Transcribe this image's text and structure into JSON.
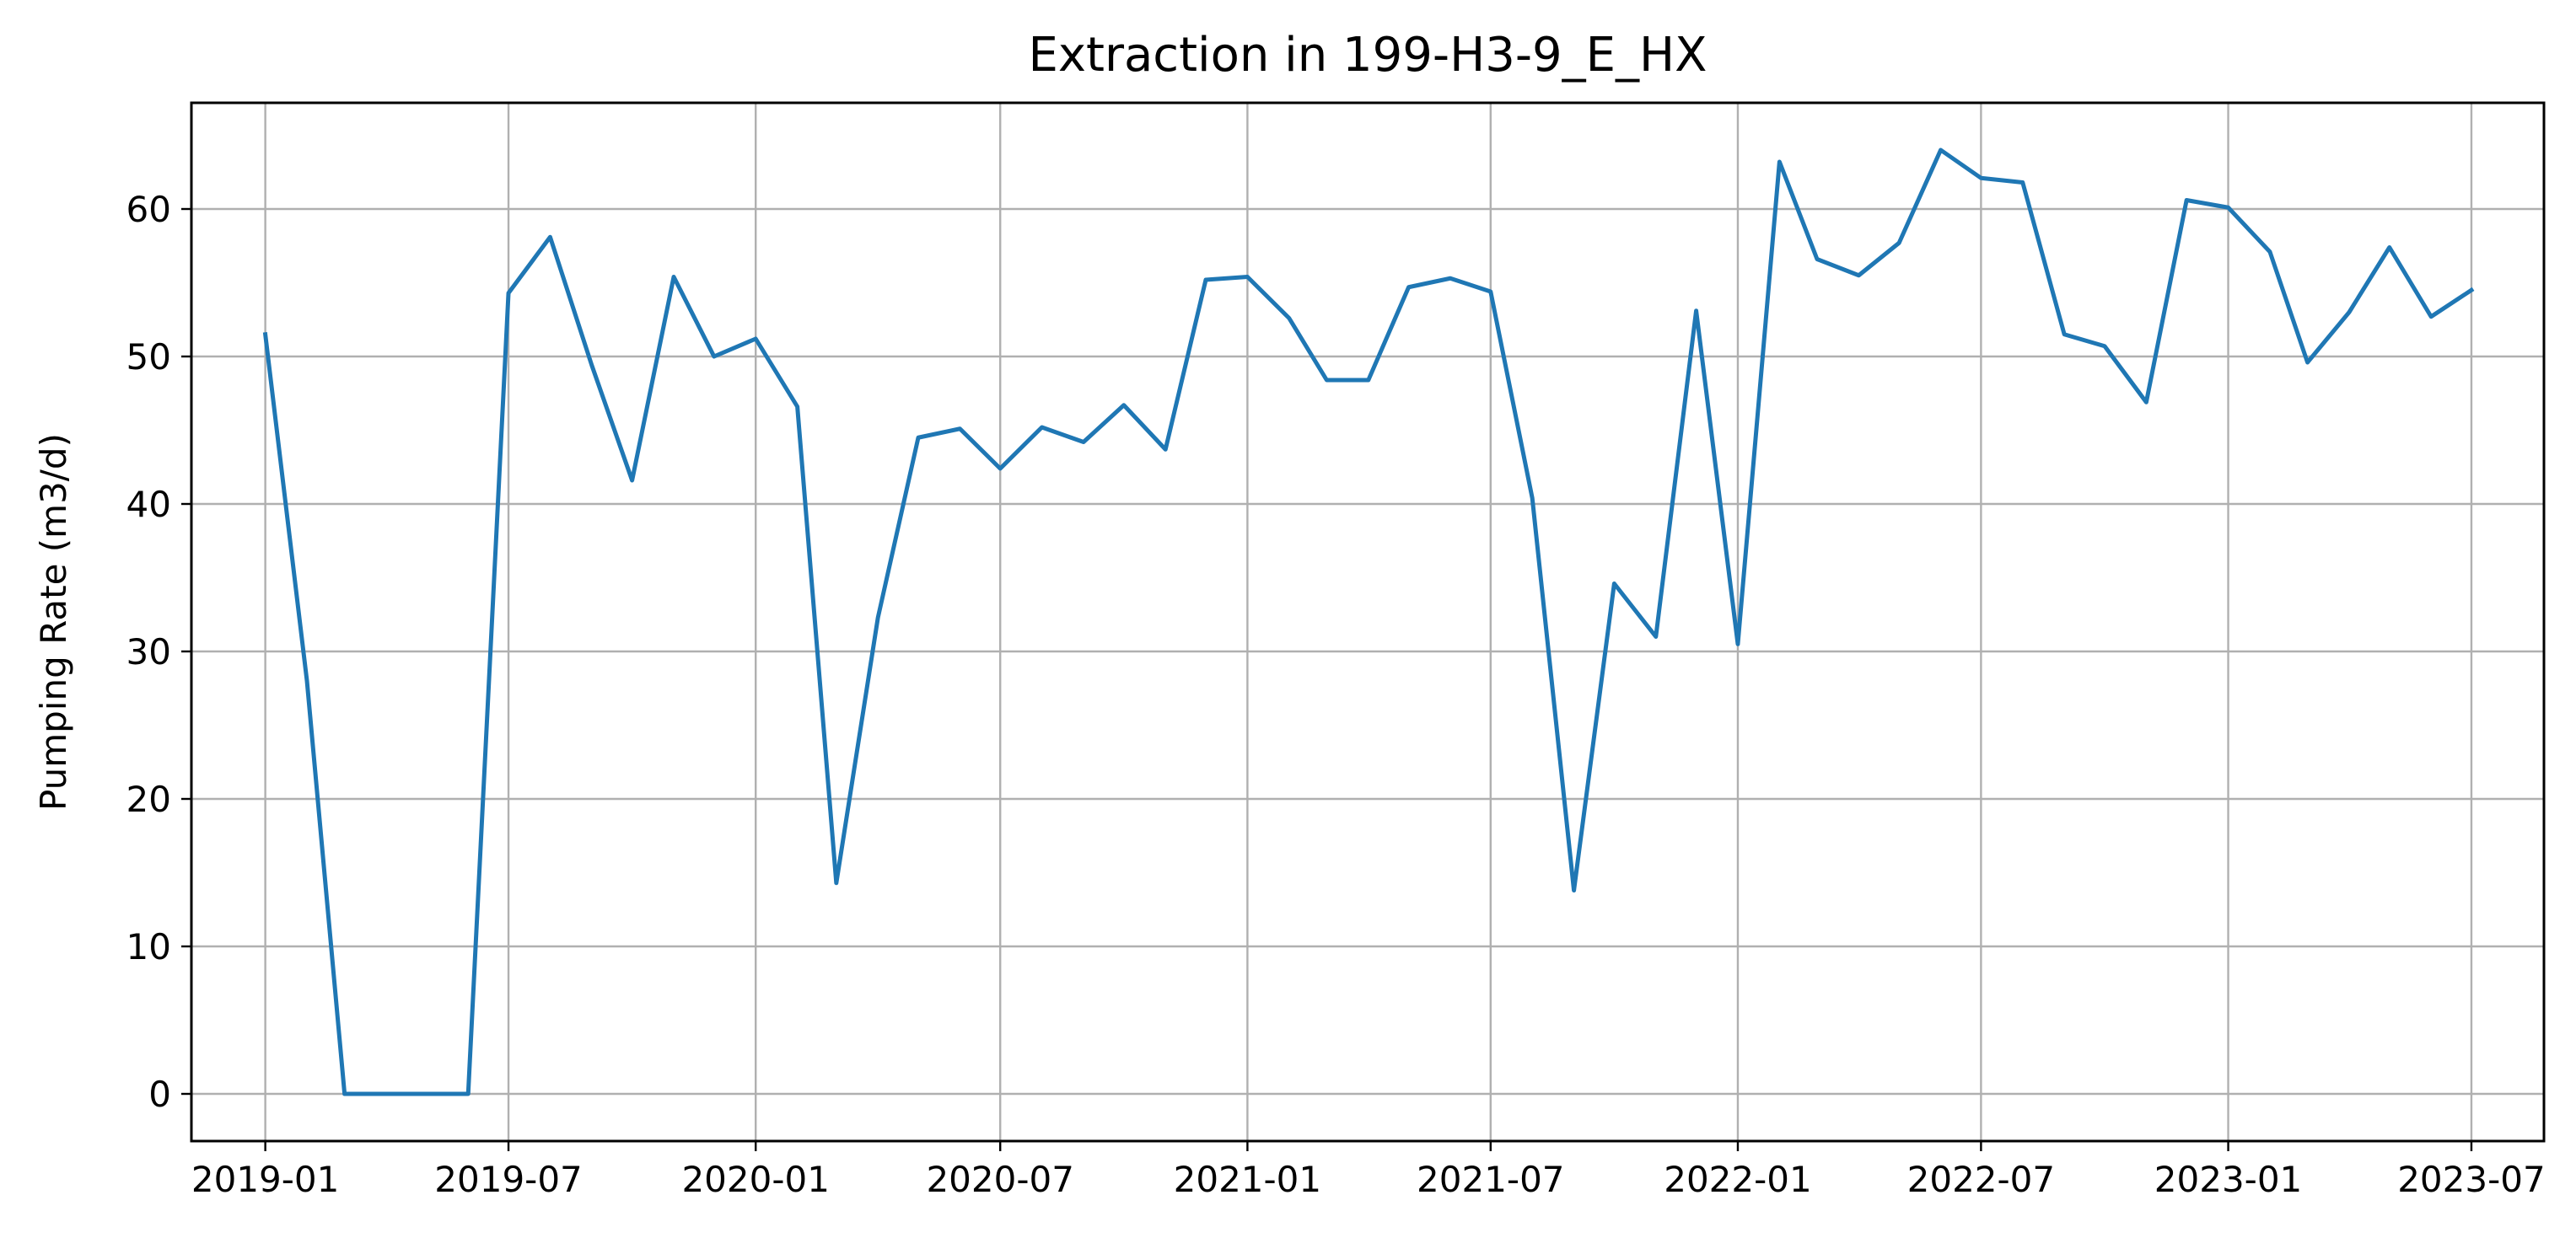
{
  "chart_data": {
    "type": "line",
    "title": "Extraction in 199-H3-9_E_HX",
    "xlabel": "",
    "ylabel": "Pumping Rate (m3/d)",
    "xlim": [
      "2018-11-07",
      "2023-08-24"
    ],
    "ylim": [
      -3.2,
      67.2
    ],
    "grid": true,
    "color": "#1f77b4",
    "x_ticks": [
      {
        "date": "2019-01-01",
        "label": "2019-01"
      },
      {
        "date": "2019-07-01",
        "label": "2019-07"
      },
      {
        "date": "2020-01-01",
        "label": "2020-01"
      },
      {
        "date": "2020-07-01",
        "label": "2020-07"
      },
      {
        "date": "2021-01-01",
        "label": "2021-01"
      },
      {
        "date": "2021-07-01",
        "label": "2021-07"
      },
      {
        "date": "2022-01-01",
        "label": "2022-01"
      },
      {
        "date": "2022-07-01",
        "label": "2022-07"
      },
      {
        "date": "2023-01-01",
        "label": "2023-01"
      },
      {
        "date": "2023-07-01",
        "label": "2023-07"
      }
    ],
    "y_ticks": [
      {
        "value": 0,
        "label": "0"
      },
      {
        "value": 10,
        "label": "10"
      },
      {
        "value": 20,
        "label": "20"
      },
      {
        "value": 30,
        "label": "30"
      },
      {
        "value": 40,
        "label": "40"
      },
      {
        "value": 50,
        "label": "50"
      },
      {
        "value": 60,
        "label": "60"
      }
    ],
    "series": [
      {
        "x": [
          "2019-01-01",
          "2019-02-01",
          "2019-03-01",
          "2019-04-01",
          "2019-05-01",
          "2019-06-01",
          "2019-07-01",
          "2019-08-01",
          "2019-09-01",
          "2019-10-01",
          "2019-11-01",
          "2019-12-01",
          "2020-01-01",
          "2020-02-01",
          "2020-03-01",
          "2020-04-01",
          "2020-05-01",
          "2020-06-01",
          "2020-07-01",
          "2020-08-01",
          "2020-09-01",
          "2020-10-01",
          "2020-11-01",
          "2020-12-01",
          "2021-01-01",
          "2021-02-01",
          "2021-03-01",
          "2021-04-01",
          "2021-05-01",
          "2021-06-01",
          "2021-07-01",
          "2021-08-01",
          "2021-09-01",
          "2021-10-01",
          "2021-11-01",
          "2021-12-01",
          "2022-01-01",
          "2022-02-01",
          "2022-03-01",
          "2022-04-01",
          "2022-05-01",
          "2022-06-01",
          "2022-07-01",
          "2022-08-01",
          "2022-09-01",
          "2022-10-01",
          "2022-11-01",
          "2022-12-01",
          "2023-01-01",
          "2023-02-01",
          "2023-03-01",
          "2023-04-01",
          "2023-05-01",
          "2023-06-01",
          "2023-07-01"
        ],
        "y": [
          51.5,
          28.0,
          0.0,
          0.0,
          0.0,
          0.0,
          54.3,
          58.1,
          49.4,
          41.6,
          55.4,
          50.0,
          51.2,
          46.6,
          14.3,
          32.3,
          44.5,
          45.1,
          42.4,
          45.2,
          44.2,
          46.7,
          43.7,
          55.2,
          55.4,
          52.6,
          48.4,
          48.4,
          54.7,
          55.3,
          54.4,
          40.4,
          13.8,
          34.6,
          31.0,
          53.1,
          30.5,
          63.2,
          56.6,
          55.5,
          57.7,
          64.0,
          62.1,
          61.8,
          51.5,
          50.7,
          46.9,
          60.6,
          60.1,
          57.1,
          49.6,
          53.0,
          57.4,
          52.7,
          54.5
        ]
      }
    ]
  }
}
